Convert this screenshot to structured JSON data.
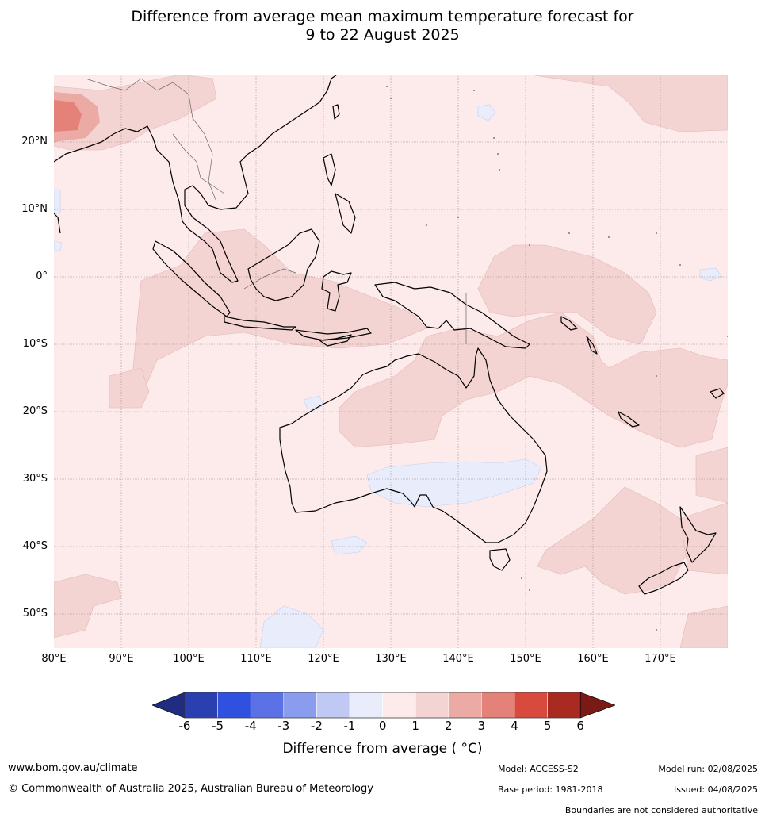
{
  "title_line1": "Difference from average mean maximum temperature forecast for",
  "title_line2": "9 to 22 August 2025",
  "lat_labels": [
    "20°N",
    "10°N",
    "0°",
    "10°S",
    "20°S",
    "30°S",
    "40°S",
    "50°S"
  ],
  "lon_labels": [
    "80°E",
    "90°E",
    "100°E",
    "110°E",
    "120°E",
    "130°E",
    "140°E",
    "150°E",
    "160°E",
    "170°E"
  ],
  "colorbar": {
    "ticks": [
      "-6",
      "-5",
      "-4",
      "-3",
      "-2",
      "-1",
      "0",
      "1",
      "2",
      "3",
      "4",
      "5",
      "6"
    ],
    "colors": [
      "#1f2c80",
      "#2a3fb0",
      "#3050e0",
      "#5b72e6",
      "#8a9cee",
      "#c0c8f4",
      "#e8ecfb",
      "#fcebea",
      "#f4d4d2",
      "#ecaaa5",
      "#e4827a",
      "#d84a3e",
      "#a82a20",
      "#7a1a16"
    ],
    "title": "Difference from average ( °C)"
  },
  "map": {
    "land_outline_color": "#000000",
    "background_anomaly_color": "#fcebea",
    "warm_anomaly_color": "#f4d4d2",
    "cool_anomaly_color": "#e8ecfb",
    "hot_anomaly_color": "#e4827a"
  },
  "footer": {
    "website": "www.bom.gov.au/climate",
    "copyright": "© Commonwealth of Australia 2025, Australian Bureau of Meteorology",
    "model": "Model: ACCESS-S2",
    "base_period": "Base period: 1981-2018",
    "model_run": "Model run: 02/08/2025",
    "issued": "Issued: 04/08/2025",
    "disclaimer": "Boundaries are not considered authoritative"
  }
}
